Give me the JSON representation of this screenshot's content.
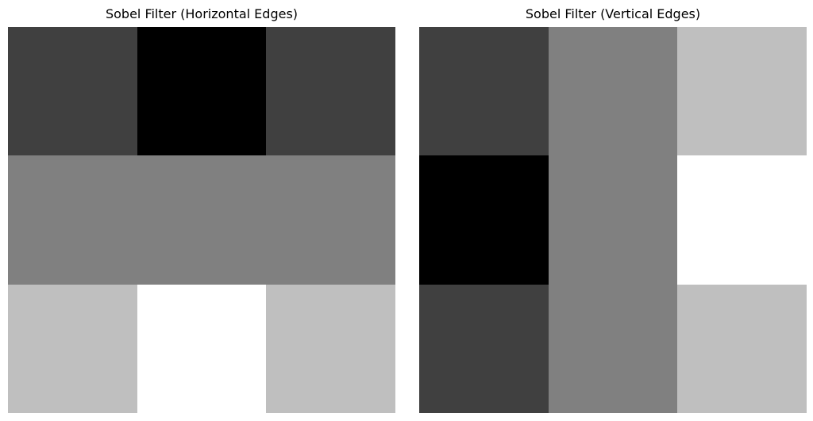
{
  "chart_data": [
    {
      "type": "heatmap",
      "title": "Sobel Filter (Horizontal Edges)",
      "colormap": "gray",
      "vmin": -2,
      "vmax": 2,
      "axis": "off",
      "values": [
        [
          -1,
          -2,
          -1
        ],
        [
          0,
          0,
          0
        ],
        [
          1,
          2,
          1
        ]
      ]
    },
    {
      "type": "heatmap",
      "title": "Sobel Filter (Vertical Edges)",
      "colormap": "gray",
      "vmin": -2,
      "vmax": 2,
      "axis": "off",
      "values": [
        [
          -1,
          0,
          1
        ],
        [
          -2,
          0,
          2
        ],
        [
          -1,
          0,
          1
        ]
      ]
    }
  ]
}
